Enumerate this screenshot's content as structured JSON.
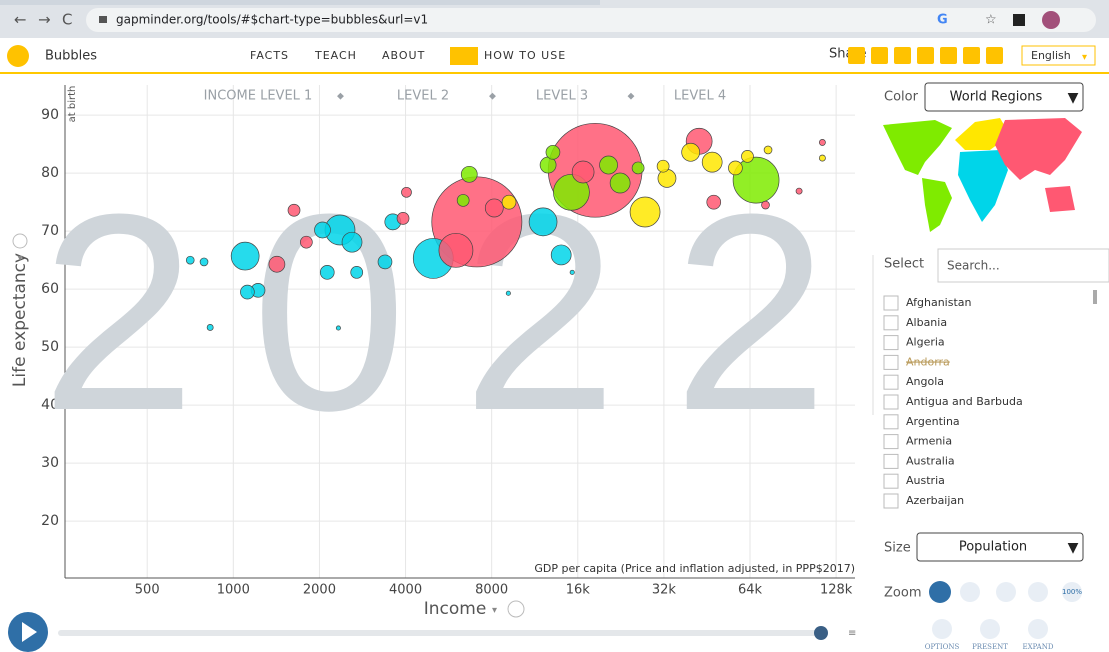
{
  "browser": {
    "url": "gapminder.org/tools/#$chart-type=bubbles&url=v1"
  },
  "header": {
    "app": "Bubbles",
    "nav": [
      "FACTS",
      "TEACH",
      "ABOUT",
      "HOW TO USE"
    ],
    "share": "Share",
    "language": "English"
  },
  "chart_data": {
    "type": "bubble",
    "year": "2022",
    "y_label": "Life expectancy",
    "y_sublabel": "at birth",
    "x_label": "Income",
    "x_note": "GDP per capita (Price and inflation adjusted, in PPP$2017)",
    "income_levels": [
      "INCOME LEVEL 1",
      "LEVEL 2",
      "LEVEL 3",
      "LEVEL 4"
    ],
    "log_x": true,
    "grid": true,
    "xlim": [
      258,
      149000
    ],
    "ylim": [
      10.2,
      95.2
    ],
    "xticks": [
      500,
      1000,
      2000,
      4000,
      8000,
      {
        "value": 16000,
        "label": "16k"
      },
      {
        "value": 32000,
        "label": "32k"
      },
      {
        "value": 64000,
        "label": "64k"
      },
      {
        "value": 128000,
        "label": "128k"
      }
    ],
    "yticks": [
      20,
      30,
      40,
      50,
      60,
      70,
      80,
      90
    ],
    "x": [
      7100,
      18400,
      5000,
      6000,
      67200,
      47200,
      27500,
      2360,
      1100,
      12100,
      15200,
      42500,
      2600,
      2050,
      1420,
      1220,
      1120,
      830,
      707,
      790,
      1630,
      1800,
      3920,
      4030,
      3610,
      3390,
      2700,
      2130,
      2330,
      6680,
      6360,
      8170,
      9200,
      12600,
      22500,
      20500,
      26000,
      31800,
      32800,
      39700,
      56900,
      47800,
      114600,
      114600,
      95000,
      72500,
      9150,
      15300,
      14000,
      16700,
      13100,
      62700,
      74000
    ],
    "values": [
      71.6,
      80.5,
      65.3,
      66.7,
      78.8,
      81.9,
      73.3,
      70.2,
      65.7,
      71.6,
      76.7,
      85.5,
      68.1,
      70.2,
      64.3,
      59.8,
      59.5,
      53.4,
      65,
      64.7,
      73.6,
      68.1,
      72.2,
      76.7,
      71.6,
      64.7,
      62.9,
      62.9,
      53.3,
      79.8,
      75.3,
      74,
      75,
      81.4,
      78.3,
      81.4,
      80.9,
      81.2,
      79.1,
      83.6,
      80.9,
      75,
      85.3,
      82.6,
      76.9,
      74.5,
      59.3,
      62.9,
      65.9,
      80.2,
      83.6,
      82.9,
      84
    ],
    "sizes": [
      1300,
      1410,
      256,
      185,
      338,
      64,
      144,
      144,
      125,
      125,
      207,
      108,
      64,
      41,
      41,
      31,
      31,
      6,
      10,
      10,
      23,
      23,
      23,
      16,
      41,
      31,
      23,
      31,
      3,
      41,
      23,
      52,
      31,
      41,
      64,
      52,
      23,
      23,
      52,
      52,
      31,
      31,
      6,
      6,
      6,
      10,
      3,
      3,
      64,
      77,
      31,
      23,
      10
    ],
    "colors": [
      "#ff5872",
      "#ff5872",
      "#00d5e9",
      "#ff5872",
      "#7feb00",
      "#ffe700",
      "#ffe700",
      "#00d5e9",
      "#00d5e9",
      "#00d5e9",
      "#7feb00",
      "#ff5872",
      "#00d5e9",
      "#00d5e9",
      "#ff5872",
      "#00d5e9",
      "#00d5e9",
      "#00d5e9",
      "#00d5e9",
      "#00d5e9",
      "#ff5872",
      "#ff5872",
      "#ff5872",
      "#ff5872",
      "#00d5e9",
      "#00d5e9",
      "#00d5e9",
      "#00d5e9",
      "#00d5e9",
      "#7feb00",
      "#7feb00",
      "#ff5872",
      "#ffe700",
      "#7feb00",
      "#7feb00",
      "#7feb00",
      "#7feb00",
      "#ffe700",
      "#ffe700",
      "#ffe700",
      "#ffe700",
      "#ff5872",
      "#ff5872",
      "#ffe700",
      "#ff5872",
      "#ff5872",
      "#00d5e9",
      "#00d5e9",
      "#00d5e9",
      "#ff5872",
      "#7feb00",
      "#ffe700",
      "#ffe700"
    ]
  },
  "sidebar": {
    "color_label": "Color",
    "color_value": "World Regions",
    "select_label": "Select",
    "search_placeholder": "Search...",
    "countries": [
      "Afghanistan",
      "Albania",
      "Algeria",
      "Andorra",
      "Angola",
      "Antigua and Barbuda",
      "Argentina",
      "Armenia",
      "Australia",
      "Austria",
      "Azerbaijan"
    ],
    "unavailable": [
      3
    ],
    "size_label": "Size",
    "size_value": "Population",
    "zoom_label": "Zoom",
    "zoom_reset": "100%",
    "buttons": [
      "OPTIONS",
      "PRESENT",
      "EXPAND"
    ]
  }
}
